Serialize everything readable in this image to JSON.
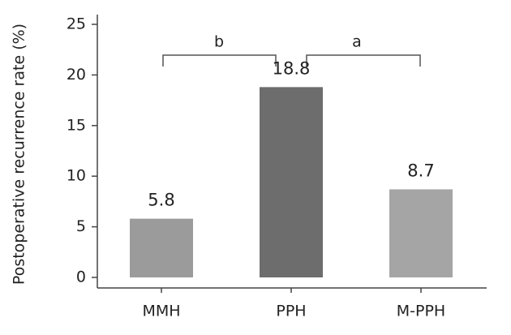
{
  "chart_data": {
    "type": "bar",
    "y_label": "Postoperative recurrence rate (%)",
    "categories": [
      "MMH",
      "PPH",
      "M-PPH"
    ],
    "values": [
      5.8,
      18.8,
      8.7
    ],
    "colors": [
      "#9b9b9b",
      "#6d6d6d",
      "#a5a5a5"
    ],
    "ylim": [
      0,
      25
    ],
    "yticks": [
      0,
      5,
      10,
      15,
      20,
      25
    ],
    "grid": false,
    "annotations": [
      "b",
      "a"
    ]
  }
}
